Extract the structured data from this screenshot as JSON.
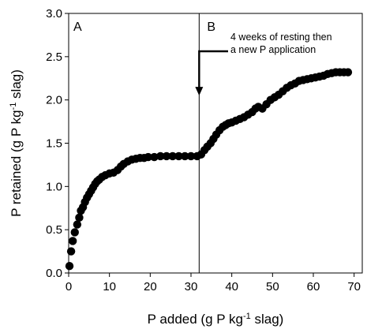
{
  "chart_data": {
    "type": "scatter",
    "xlabel": {
      "main": "P added (g P kg",
      "sup": "-1",
      "tail": " slag)"
    },
    "ylabel": {
      "main": "P retained (g P kg",
      "sup": "-1",
      "tail": " slag)"
    },
    "xlim": [
      0,
      72
    ],
    "ylim": [
      0,
      3.0
    ],
    "x_ticks": [
      0,
      10,
      20,
      30,
      40,
      50,
      60,
      70
    ],
    "x_tick_labels": [
      "0",
      "10",
      "20",
      "30",
      "40",
      "50",
      "60",
      "70"
    ],
    "y_ticks": [
      0,
      0.5,
      1.0,
      1.5,
      2.0,
      2.5,
      3.0
    ],
    "y_tick_labels": [
      "0.0",
      "0.5",
      "1.0",
      "1.5",
      "2.0",
      "2.5",
      "3.0"
    ],
    "grid": false,
    "panel_labels": [
      "A",
      "B"
    ],
    "divider_x": 32,
    "annotation": {
      "lines": [
        "4 weeks of resting then",
        "a new P application"
      ],
      "arrow_to": [
        32,
        2.05
      ]
    },
    "points": [
      [
        0.2,
        0.08
      ],
      [
        0.6,
        0.25
      ],
      [
        1.0,
        0.37
      ],
      [
        1.5,
        0.47
      ],
      [
        2.1,
        0.56
      ],
      [
        2.6,
        0.64
      ],
      [
        3.0,
        0.72
      ],
      [
        3.5,
        0.76
      ],
      [
        4.0,
        0.82
      ],
      [
        4.5,
        0.87
      ],
      [
        5.0,
        0.91
      ],
      [
        5.5,
        0.95
      ],
      [
        6.0,
        0.99
      ],
      [
        6.5,
        1.03
      ],
      [
        7.0,
        1.06
      ],
      [
        7.5,
        1.08
      ],
      [
        8.2,
        1.11
      ],
      [
        9.0,
        1.13
      ],
      [
        10.0,
        1.15
      ],
      [
        11.0,
        1.16
      ],
      [
        12.0,
        1.19
      ],
      [
        12.8,
        1.23
      ],
      [
        13.5,
        1.26
      ],
      [
        14.5,
        1.29
      ],
      [
        15.5,
        1.31
      ],
      [
        16.5,
        1.32
      ],
      [
        17.5,
        1.33
      ],
      [
        18.5,
        1.33
      ],
      [
        19.5,
        1.34
      ],
      [
        21.0,
        1.34
      ],
      [
        22.5,
        1.35
      ],
      [
        24.0,
        1.35
      ],
      [
        25.5,
        1.35
      ],
      [
        27.0,
        1.35
      ],
      [
        28.5,
        1.35
      ],
      [
        30.0,
        1.35
      ],
      [
        31.5,
        1.35
      ],
      [
        32.5,
        1.37
      ],
      [
        33.3,
        1.42
      ],
      [
        34.0,
        1.46
      ],
      [
        34.8,
        1.5
      ],
      [
        35.5,
        1.55
      ],
      [
        36.2,
        1.6
      ],
      [
        37.0,
        1.65
      ],
      [
        37.8,
        1.69
      ],
      [
        38.5,
        1.71
      ],
      [
        39.2,
        1.73
      ],
      [
        40.0,
        1.74
      ],
      [
        41.0,
        1.76
      ],
      [
        42.0,
        1.78
      ],
      [
        43.0,
        1.8
      ],
      [
        44.0,
        1.83
      ],
      [
        45.0,
        1.86
      ],
      [
        45.8,
        1.9
      ],
      [
        46.5,
        1.92
      ],
      [
        47.5,
        1.9
      ],
      [
        48.5,
        1.95
      ],
      [
        49.5,
        2.0
      ],
      [
        50.5,
        2.03
      ],
      [
        51.5,
        2.06
      ],
      [
        52.5,
        2.1
      ],
      [
        53.5,
        2.14
      ],
      [
        54.5,
        2.17
      ],
      [
        55.5,
        2.19
      ],
      [
        56.5,
        2.22
      ],
      [
        57.5,
        2.23
      ],
      [
        58.5,
        2.24
      ],
      [
        59.5,
        2.25
      ],
      [
        60.5,
        2.26
      ],
      [
        61.5,
        2.27
      ],
      [
        62.5,
        2.28
      ],
      [
        63.5,
        2.3
      ],
      [
        64.5,
        2.31
      ],
      [
        65.5,
        2.32
      ],
      [
        66.5,
        2.32
      ],
      [
        67.5,
        2.32
      ],
      [
        68.5,
        2.32
      ]
    ],
    "colors": {
      "marker": "#000000",
      "axis": "#000000"
    }
  }
}
